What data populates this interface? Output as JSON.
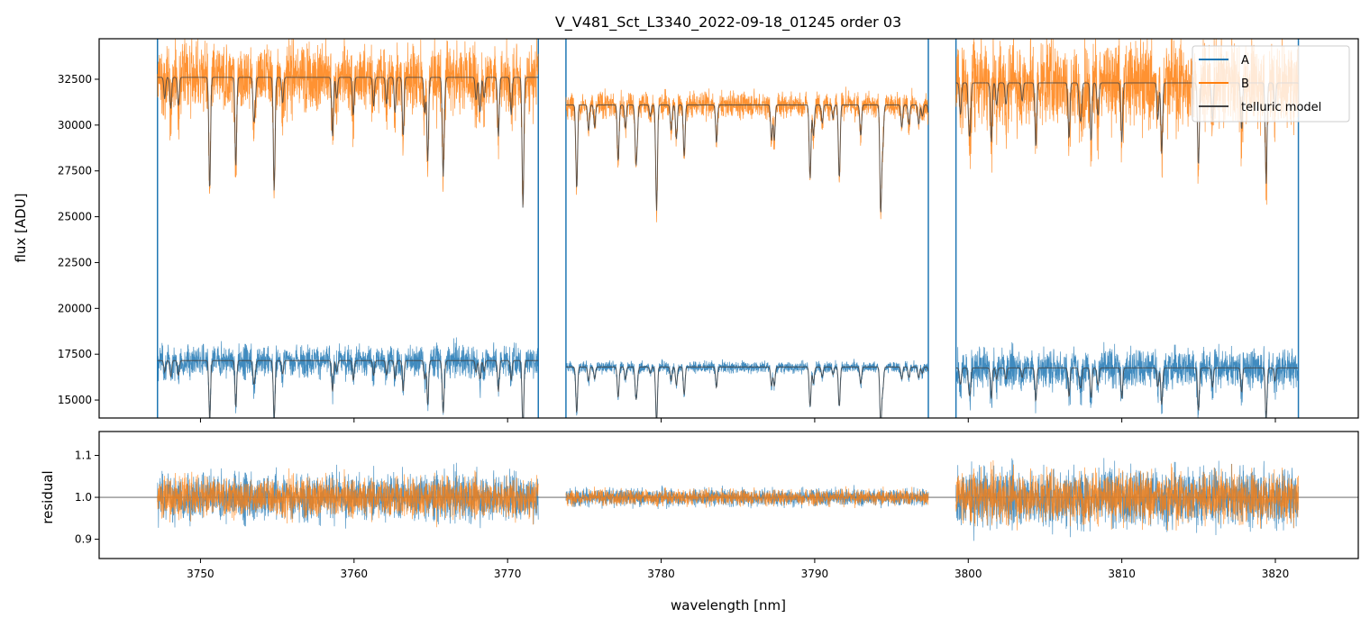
{
  "chart_data": [
    {
      "type": "line",
      "title": "V_V481_Sct_L3340_2022-09-18_01245  order 03",
      "xlabel": "",
      "ylabel": "flux [ADU]",
      "xlim": [
        3743.4,
        3825.4
      ],
      "ylim": [
        14020,
        34710
      ],
      "yticks": [
        "15000",
        "17500",
        "20000",
        "22500",
        "25000",
        "27500",
        "30000",
        "32500"
      ],
      "ytick_values": [
        15000,
        17500,
        20000,
        22500,
        25000,
        27500,
        30000,
        32500
      ],
      "legend": {
        "placement": "top-right",
        "entries": [
          "A",
          "B",
          "telluric model"
        ]
      },
      "segments": [
        {
          "x": [
            3747.2,
            3772.0
          ],
          "A_continuum": 17150,
          "B_continuum": 32600
        },
        {
          "x": [
            3773.8,
            3797.4
          ],
          "A_continuum": 16800,
          "B_continuum": 31100
        },
        {
          "x": [
            3799.2,
            3821.5
          ],
          "A_continuum": 16750,
          "B_continuum": 32300
        }
      ],
      "telluric_lines": [
        [
          3750.6,
          0.19
        ],
        [
          3752.3,
          0.15
        ],
        [
          3754.8,
          0.19
        ],
        [
          3758.6,
          0.1
        ],
        [
          3763.2,
          0.1
        ],
        [
          3764.8,
          0.14
        ],
        [
          3765.8,
          0.16
        ],
        [
          3769.4,
          0.1
        ],
        [
          3771.0,
          0.22
        ],
        [
          3774.5,
          0.15
        ],
        [
          3777.2,
          0.1
        ],
        [
          3779.7,
          0.13
        ],
        [
          3781.5,
          0.09
        ],
        [
          3789.7,
          0.13
        ],
        [
          3791.6,
          0.13
        ],
        [
          3794.3,
          0.19
        ],
        [
          3801.5,
          0.1
        ],
        [
          3804.4,
          0.11
        ],
        [
          3808.0,
          0.1
        ],
        [
          3810.0,
          0.1
        ],
        [
          3812.6,
          0.12
        ],
        [
          3815.0,
          0.1
        ],
        [
          3817.8,
          0.08
        ],
        [
          3819.4,
          0.17
        ]
      ],
      "series_colors": {
        "A": "#1f77b4",
        "B": "#ff7f0e",
        "telluric model": "#444444"
      }
    },
    {
      "type": "line",
      "xlabel": "wavelength [nm]",
      "ylabel": "residual",
      "xlim": [
        3743.4,
        3825.4
      ],
      "ylim": [
        0.854,
        1.157
      ],
      "xticks": [
        "3750",
        "3760",
        "3770",
        "3780",
        "3790",
        "3800",
        "3810",
        "3820"
      ],
      "xtick_values": [
        3750,
        3760,
        3770,
        3780,
        3790,
        3800,
        3810,
        3820
      ],
      "yticks": [
        "0.9",
        "1.0",
        "1.1"
      ],
      "ytick_values": [
        0.9,
        1.0,
        1.1
      ],
      "reference_line": 1.0,
      "residual_scatter": {
        "A": [
          0.04,
          0.015,
          0.05
        ],
        "B": [
          0.02,
          0.008,
          0.025
        ]
      }
    }
  ]
}
